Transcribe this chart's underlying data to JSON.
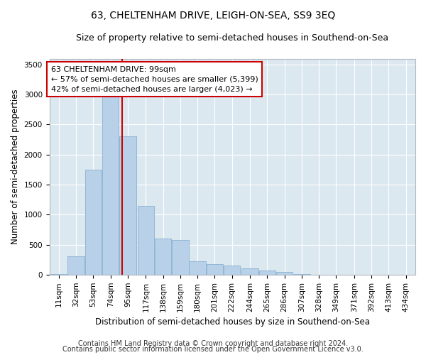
{
  "title": "63, CHELTENHAM DRIVE, LEIGH-ON-SEA, SS9 3EQ",
  "subtitle": "Size of property relative to semi-detached houses in Southend-on-Sea",
  "xlabel": "Distribution of semi-detached houses by size in Southend-on-Sea",
  "ylabel": "Number of semi-detached properties",
  "footer1": "Contains HM Land Registry data © Crown copyright and database right 2024.",
  "footer2": "Contains public sector information licensed under the Open Government Licence v3.0.",
  "annotation_line1": "63 CHELTENHAM DRIVE: 99sqm",
  "annotation_line2": "← 57% of semi-detached houses are smaller (5,399)",
  "annotation_line3": "42% of semi-detached houses are larger (4,023) →",
  "property_size": 99,
  "bar_color": "#b8d0e8",
  "bar_edge_color": "#7aaacb",
  "red_line_color": "#cc0000",
  "annotation_box_facecolor": "#ffffff",
  "annotation_box_edgecolor": "#cc0000",
  "background_color": "#dce8f0",
  "grid_color": "#ffffff",
  "bins": [
    11,
    32,
    53,
    74,
    95,
    117,
    138,
    159,
    180,
    201,
    222,
    244,
    265,
    286,
    307,
    328,
    349,
    371,
    392,
    413,
    434
  ],
  "counts": [
    10,
    310,
    1750,
    3050,
    2300,
    1150,
    600,
    580,
    220,
    170,
    150,
    100,
    70,
    50,
    10,
    0,
    0,
    0,
    0,
    0
  ],
  "ylim": [
    0,
    3600
  ],
  "yticks": [
    0,
    500,
    1000,
    1500,
    2000,
    2500,
    3000,
    3500
  ],
  "title_fontsize": 10,
  "subtitle_fontsize": 9,
  "xlabel_fontsize": 8.5,
  "ylabel_fontsize": 8.5,
  "tick_fontsize": 7.5,
  "annotation_fontsize": 8,
  "footer_fontsize": 7
}
